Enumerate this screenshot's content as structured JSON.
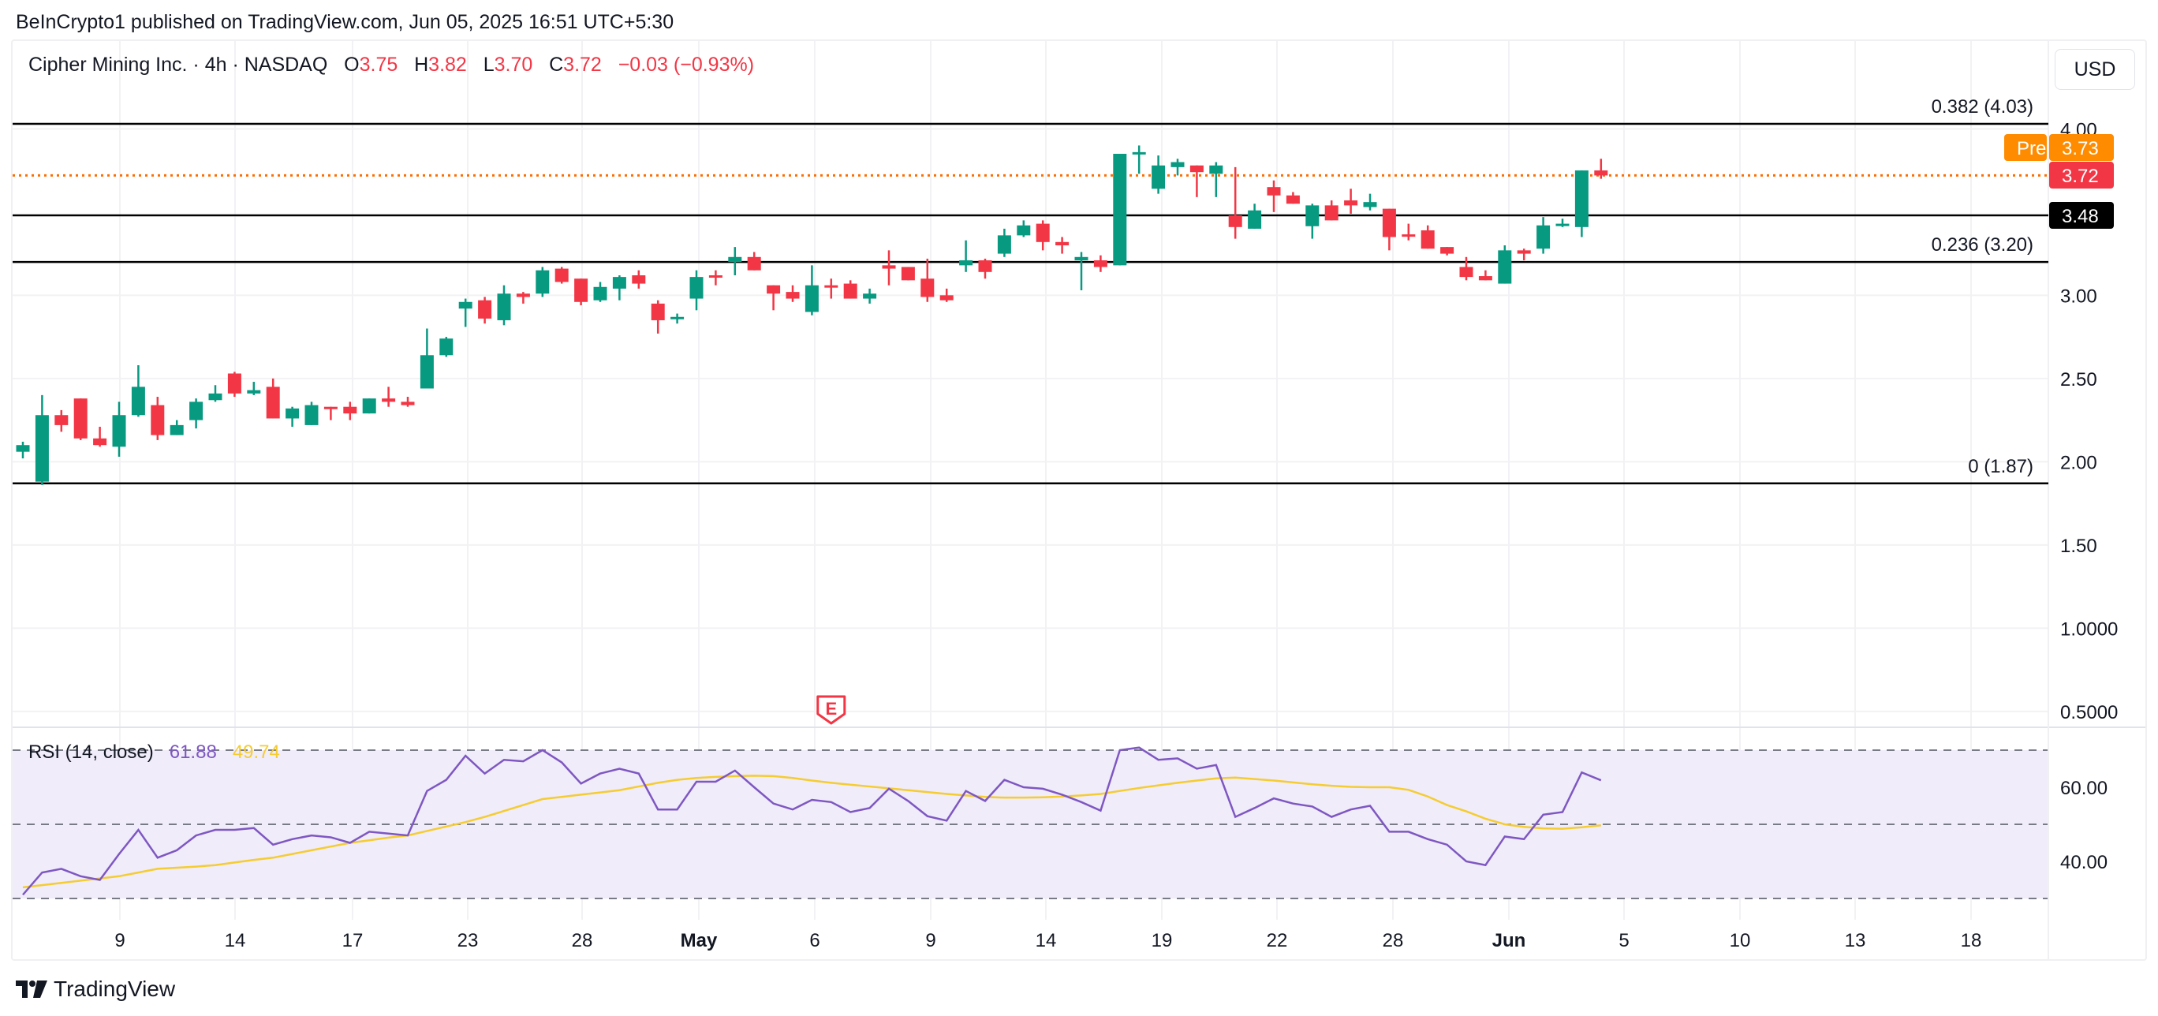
{
  "publisher_line": "BeInCrypto1 published on TradingView.com, Jun 05, 2025 16:51 UTC+5:30",
  "legend": {
    "symbol": "Cipher Mining Inc. · 4h · NASDAQ",
    "o_label": "O",
    "o": "3.75",
    "h_label": "H",
    "h": "3.82",
    "l_label": "L",
    "l": "3.70",
    "c_label": "C",
    "c": "3.72",
    "change": "−0.03 (−0.93%)"
  },
  "currency_button": "USD",
  "colors": {
    "up": "#089981",
    "down": "#f23645",
    "rsi": "#7e57c2",
    "rsi_ma": "#f5cc31",
    "pre": "#ff8c00",
    "fib": "#000000"
  },
  "price_axis": {
    "labels": [
      "4.00",
      "3.00",
      "2.50",
      "2.00",
      "1.50",
      "1.0000",
      "0.5000"
    ],
    "values": [
      4.0,
      3.0,
      2.5,
      2.0,
      1.5,
      1.0,
      0.5
    ]
  },
  "tags": {
    "pre_label": "Pre",
    "pre_value": "3.73",
    "last_value": "3.72",
    "level_value": "3.48"
  },
  "fib_levels": [
    {
      "label": "0.382 (4.03)",
      "value": 4.03
    },
    {
      "label": "0.236 (3.20)",
      "value": 3.2
    },
    {
      "label": "0 (1.87)",
      "value": 1.87
    }
  ],
  "horizontal_level": 3.48,
  "last_price": 3.72,
  "earnings_marker": {
    "label": "E",
    "candle_index": 42
  },
  "rsi": {
    "title": "RSI (14, close)",
    "value": "61.88",
    "ma_value": "49.74",
    "axis_labels": [
      "60.00",
      "40.00"
    ],
    "levels": [
      70,
      50,
      30
    ]
  },
  "time_axis": [
    "9",
    "14",
    "17",
    "23",
    "28",
    "May",
    "6",
    "9",
    "14",
    "19",
    "22",
    "28",
    "Jun",
    "5",
    "10",
    "13",
    "18"
  ],
  "brand": "TradingView",
  "chart_data": {
    "type": "candlestick",
    "title": "Cipher Mining Inc. · 4h · NASDAQ",
    "ylabel": "USD",
    "ylim": [
      0.45,
      4.2
    ],
    "ohlc": [
      [
        2.06,
        2.12,
        2.02,
        2.1
      ],
      [
        1.88,
        2.4,
        1.86,
        2.28
      ],
      [
        2.28,
        2.31,
        2.18,
        2.22
      ],
      [
        2.38,
        2.38,
        2.13,
        2.14
      ],
      [
        2.14,
        2.21,
        2.09,
        2.1
      ],
      [
        2.09,
        2.36,
        2.03,
        2.28
      ],
      [
        2.28,
        2.58,
        2.27,
        2.45
      ],
      [
        2.34,
        2.39,
        2.13,
        2.16
      ],
      [
        2.16,
        2.25,
        2.16,
        2.22
      ],
      [
        2.25,
        2.38,
        2.2,
        2.36
      ],
      [
        2.37,
        2.46,
        2.36,
        2.41
      ],
      [
        2.53,
        2.54,
        2.39,
        2.41
      ],
      [
        2.41,
        2.48,
        2.4,
        2.43
      ],
      [
        2.45,
        2.5,
        2.26,
        2.26
      ],
      [
        2.26,
        2.33,
        2.21,
        2.32
      ],
      [
        2.22,
        2.36,
        2.22,
        2.34
      ],
      [
        2.33,
        2.33,
        2.25,
        2.32
      ],
      [
        2.33,
        2.36,
        2.25,
        2.29
      ],
      [
        2.29,
        2.38,
        2.29,
        2.38
      ],
      [
        2.38,
        2.45,
        2.33,
        2.36
      ],
      [
        2.36,
        2.39,
        2.33,
        2.34
      ],
      [
        2.44,
        2.8,
        2.44,
        2.64
      ],
      [
        2.64,
        2.75,
        2.63,
        2.74
      ],
      [
        2.92,
        2.98,
        2.81,
        2.96
      ],
      [
        2.97,
        2.99,
        2.83,
        2.86
      ],
      [
        2.85,
        3.06,
        2.82,
        3.01
      ],
      [
        3.01,
        3.02,
        2.95,
        2.99
      ],
      [
        3.01,
        3.17,
        2.99,
        3.15
      ],
      [
        3.16,
        3.17,
        3.07,
        3.08
      ],
      [
        3.1,
        3.1,
        2.94,
        2.96
      ],
      [
        2.97,
        3.08,
        2.96,
        3.05
      ],
      [
        3.04,
        3.12,
        2.97,
        3.11
      ],
      [
        3.12,
        3.15,
        3.04,
        3.07
      ],
      [
        2.95,
        2.97,
        2.77,
        2.85
      ],
      [
        2.86,
        2.89,
        2.83,
        2.87
      ],
      [
        2.98,
        3.15,
        2.91,
        3.11
      ],
      [
        3.12,
        3.15,
        3.06,
        3.11
      ],
      [
        3.2,
        3.29,
        3.12,
        3.23
      ],
      [
        3.23,
        3.26,
        3.15,
        3.15
      ],
      [
        3.06,
        3.06,
        2.91,
        3.01
      ],
      [
        3.02,
        3.06,
        2.96,
        2.98
      ],
      [
        2.9,
        3.18,
        2.88,
        3.06
      ],
      [
        3.06,
        3.1,
        2.98,
        3.05
      ],
      [
        3.07,
        3.09,
        2.98,
        2.98
      ],
      [
        2.98,
        3.04,
        2.95,
        3.01
      ],
      [
        3.18,
        3.27,
        3.06,
        3.16
      ],
      [
        3.17,
        3.17,
        3.09,
        3.09
      ],
      [
        3.1,
        3.22,
        2.96,
        2.99
      ],
      [
        3.0,
        3.04,
        2.96,
        2.97
      ],
      [
        3.18,
        3.33,
        3.14,
        3.21
      ],
      [
        3.21,
        3.22,
        3.1,
        3.14
      ],
      [
        3.25,
        3.4,
        3.23,
        3.36
      ],
      [
        3.36,
        3.45,
        3.35,
        3.42
      ],
      [
        3.43,
        3.45,
        3.27,
        3.32
      ],
      [
        3.32,
        3.35,
        3.25,
        3.3
      ],
      [
        3.21,
        3.26,
        3.03,
        3.23
      ],
      [
        3.21,
        3.24,
        3.14,
        3.17
      ],
      [
        3.18,
        3.85,
        3.18,
        3.85
      ],
      [
        3.85,
        3.9,
        3.73,
        3.86
      ],
      [
        3.64,
        3.84,
        3.61,
        3.78
      ],
      [
        3.77,
        3.82,
        3.72,
        3.8
      ],
      [
        3.78,
        3.78,
        3.59,
        3.74
      ],
      [
        3.73,
        3.8,
        3.59,
        3.78
      ],
      [
        3.48,
        3.77,
        3.34,
        3.41
      ],
      [
        3.4,
        3.55,
        3.4,
        3.51
      ],
      [
        3.65,
        3.69,
        3.5,
        3.6
      ],
      [
        3.6,
        3.62,
        3.55,
        3.55
      ],
      [
        3.415,
        3.55,
        3.34,
        3.54
      ],
      [
        3.54,
        3.57,
        3.45,
        3.45
      ],
      [
        3.57,
        3.64,
        3.49,
        3.54
      ],
      [
        3.53,
        3.61,
        3.51,
        3.56
      ],
      [
        3.52,
        3.52,
        3.27,
        3.35
      ],
      [
        3.366,
        3.43,
        3.33,
        3.358
      ],
      [
        3.39,
        3.42,
        3.28,
        3.28
      ],
      [
        3.29,
        3.29,
        3.24,
        3.25
      ],
      [
        3.17,
        3.23,
        3.09,
        3.11
      ],
      [
        3.115,
        3.15,
        3.09,
        3.09
      ],
      [
        3.07,
        3.3,
        3.07,
        3.27
      ],
      [
        3.27,
        3.28,
        3.21,
        3.25
      ],
      [
        3.28,
        3.47,
        3.25,
        3.42
      ],
      [
        3.42,
        3.46,
        3.41,
        3.43
      ],
      [
        3.41,
        3.75,
        3.35,
        3.75
      ],
      [
        3.75,
        3.82,
        3.7,
        3.72
      ]
    ],
    "rsi": [
      31,
      37,
      38,
      36,
      35,
      42,
      48.5,
      41,
      43,
      47,
      48.5,
      48.5,
      49,
      44.5,
      46,
      47,
      46.5,
      45,
      48,
      47.5,
      47,
      59,
      62,
      68.5,
      63.7,
      67.4,
      67,
      70,
      66.7,
      61,
      63.7,
      65,
      63.7,
      54,
      54,
      61.5,
      61.5,
      64.5,
      60,
      55.6,
      54,
      56.6,
      56,
      53.3,
      54.4,
      59.6,
      56.3,
      52.2,
      51,
      59,
      56.3,
      62,
      60,
      59.6,
      58,
      56,
      53.7,
      70,
      70.7,
      67.4,
      67.8,
      65,
      66,
      52,
      54.4,
      57,
      55.6,
      54.8,
      52,
      54,
      55,
      48,
      48,
      46,
      44.5,
      40,
      39,
      46.7,
      46,
      52.6,
      53.3,
      64,
      61.88
    ],
    "rsi_ma": [
      33,
      33.6,
      34.2,
      34.8,
      35.4,
      36,
      37,
      38,
      38.3,
      38.6,
      39,
      39.7,
      40.4,
      41,
      42,
      43,
      44,
      45,
      45.7,
      46.4,
      47,
      48.2,
      49.4,
      50.6,
      52,
      53.6,
      55.2,
      56.8,
      57.4,
      58,
      58.6,
      59.2,
      60.2,
      61.2,
      62,
      62.5,
      62.8,
      63,
      63.1,
      63,
      62.5,
      61.8,
      61.2,
      60.7,
      60.2,
      59.7,
      59.2,
      58.7,
      58.2,
      57.8,
      57.4,
      57.2,
      57.2,
      57.3,
      57.5,
      57.8,
      58.2,
      59,
      59.8,
      60.5,
      61.2,
      61.8,
      62.4,
      62.6,
      62.2,
      61.8,
      61.3,
      60.8,
      60.4,
      60.1,
      60,
      60,
      59.3,
      57.5,
      55.2,
      53.5,
      51.5,
      50,
      49.3,
      48.9,
      48.8,
      49.2,
      49.74
    ],
    "rsi_ylim": [
      25,
      75
    ]
  }
}
